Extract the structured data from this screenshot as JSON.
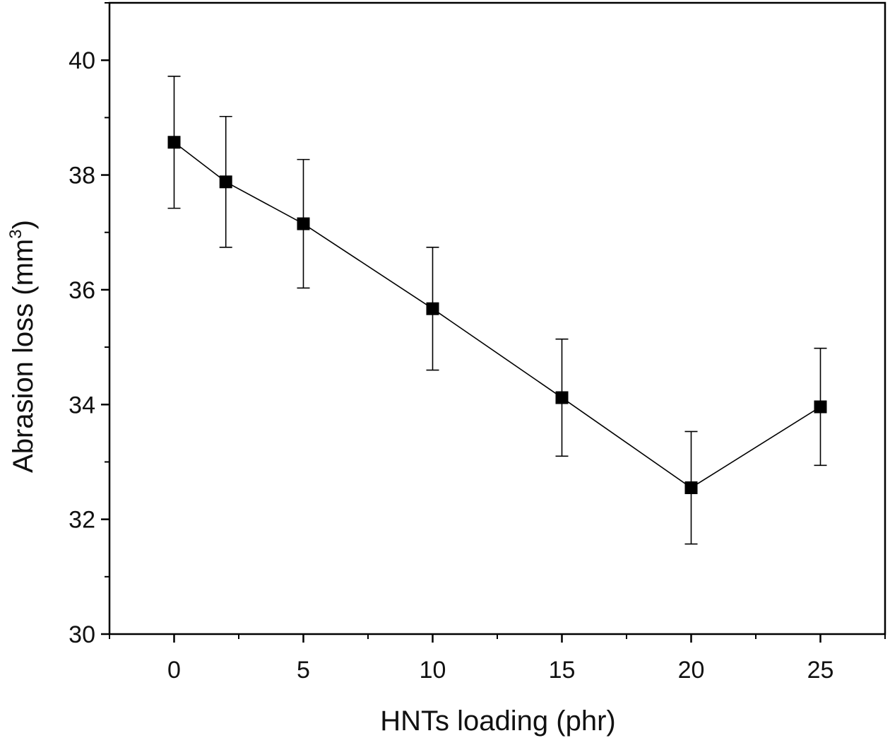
{
  "chart_data": {
    "type": "line",
    "xlabel": "HNTs loading (phr)",
    "ylabel_main": "Abrasion loss (mm",
    "ylabel_sup": "3",
    "ylabel_end": ")",
    "xlim": [
      -2.5,
      27.5
    ],
    "ylim": [
      30,
      41
    ],
    "x_ticks": [
      0,
      5,
      10,
      15,
      20,
      25
    ],
    "x_tick_labels": [
      "0",
      "5",
      "10",
      "15",
      "20",
      "25"
    ],
    "x_minor_ticks": [
      -2.5,
      2.5,
      7.5,
      12.5,
      17.5,
      22.5,
      27.5
    ],
    "y_ticks": [
      30,
      32,
      34,
      36,
      38,
      40
    ],
    "y_tick_labels": [
      "30",
      "32",
      "34",
      "36",
      "38",
      "40"
    ],
    "y_minor_ticks": [
      31,
      33,
      35,
      37,
      39,
      41
    ],
    "grid": false,
    "marker": "square",
    "color": "#000000",
    "series": [
      {
        "x": [
          0,
          2,
          5,
          10,
          15,
          20,
          25
        ],
        "y": [
          38.57,
          37.88,
          37.15,
          35.67,
          34.12,
          32.55,
          33.96
        ],
        "error": [
          1.15,
          1.14,
          1.12,
          1.07,
          1.02,
          0.98,
          1.02
        ]
      }
    ]
  }
}
